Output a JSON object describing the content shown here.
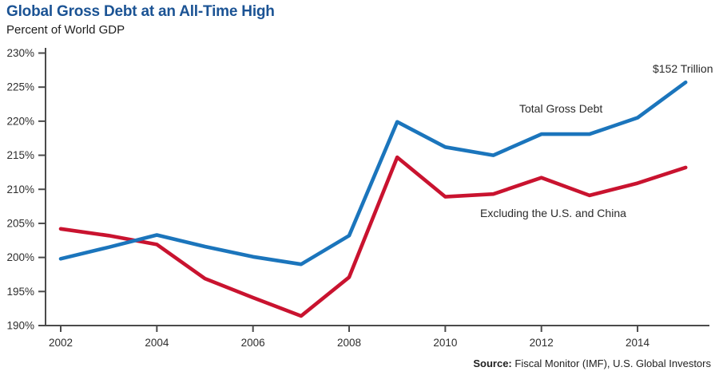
{
  "header": {
    "title": "Global Gross Debt at an All-Time High",
    "subtitle": "Percent of World GDP"
  },
  "chart_data": {
    "type": "line",
    "title": "Global Gross Debt at an All-Time High",
    "subtitle": "Percent of World GDP",
    "x": [
      2002,
      2003,
      2004,
      2005,
      2006,
      2007,
      2008,
      2009,
      2010,
      2011,
      2012,
      2013,
      2014,
      2015
    ],
    "series": [
      {
        "name": "Total Gross Debt",
        "color": "#1b75bc",
        "values": [
          199.8,
          201.5,
          203.3,
          201.6,
          200.1,
          199.0,
          203.2,
          219.9,
          216.2,
          215.0,
          218.1,
          218.1,
          220.5,
          225.7
        ]
      },
      {
        "name": "Excluding the U.S. and China",
        "color": "#c9132f",
        "values": [
          204.2,
          203.2,
          201.9,
          196.9,
          194.1,
          191.4,
          197.1,
          214.7,
          208.9,
          209.3,
          211.7,
          209.1,
          210.9,
          213.2
        ]
      }
    ],
    "xlabel": "",
    "ylabel": "Percent of World GDP",
    "ylim": [
      190,
      230
    ],
    "y_ticks": [
      230,
      225,
      220,
      215,
      210,
      205,
      200,
      195,
      190
    ],
    "y_tick_suffix": "%",
    "x_ticks": [
      2002,
      2004,
      2006,
      2008,
      2010,
      2012,
      2014
    ],
    "grid": false,
    "legend_position": "inline-annotations",
    "annotations": [
      {
        "text": "$152 Trillion"
      },
      {
        "text": "Total Gross Debt"
      },
      {
        "text": "Excluding the U.S. and China"
      }
    ],
    "axis_color": "#4b4b4b",
    "tick_label_color": "#2d2d2d"
  },
  "source": {
    "label": "Source:",
    "text": " Fiscal Monitor (IMF), U.S. Global Investors"
  }
}
